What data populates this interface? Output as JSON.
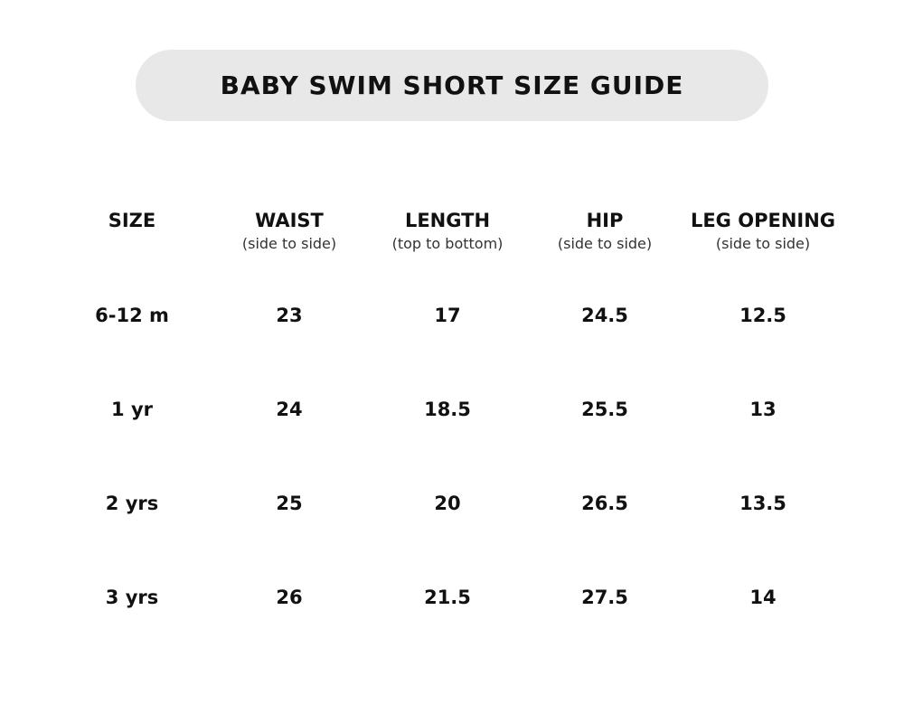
{
  "title": "BABY SWIM SHORT SIZE GUIDE",
  "columns": [
    {
      "label": "SIZE",
      "sub": ""
    },
    {
      "label": "WAIST",
      "sub": "(side to side)"
    },
    {
      "label": "LENGTH",
      "sub": "(top to bottom)"
    },
    {
      "label": "HIP",
      "sub": "(side to side)"
    },
    {
      "label": "LEG OPENING",
      "sub": "(side to side)"
    }
  ],
  "rows": [
    [
      "6-12 m",
      "23",
      "17",
      "24.5",
      "12.5"
    ],
    [
      "1 yr",
      "24",
      "18.5",
      "25.5",
      "13"
    ],
    [
      "2 yrs",
      "25",
      "20",
      "26.5",
      "13.5"
    ],
    [
      "3 yrs",
      "26",
      "21.5",
      "27.5",
      "14"
    ]
  ]
}
